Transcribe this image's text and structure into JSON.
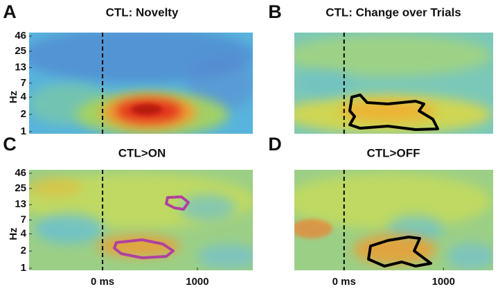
{
  "chart_data": [
    {
      "type": "heatmap",
      "panel_label": "A",
      "title": "CTL: Novelty",
      "ylabel": "Hz",
      "log_y": true,
      "ylim": [
        0.92,
        53
      ],
      "yticks": [
        1,
        2,
        4,
        7,
        13,
        25,
        46
      ],
      "xlim": [
        -775,
        1585
      ],
      "vline": 0
    },
    {
      "type": "heatmap",
      "panel_label": "B",
      "title": "CTL: Change over Trials",
      "log_y": true,
      "ylim": [
        0.92,
        53
      ],
      "xlim": [
        -500,
        1500
      ],
      "vline": 0
    },
    {
      "type": "heatmap",
      "panel_label": "C",
      "title": "CTL>ON",
      "ylabel": "Hz",
      "log_y": true,
      "ylim": [
        0.92,
        53
      ],
      "yticks": [
        1,
        2,
        4,
        7,
        13,
        25,
        46
      ],
      "xlim": [
        -775,
        1585
      ],
      "xticks": [
        {
          "value": 0,
          "label": "0 ms"
        },
        1000
      ],
      "vline": 0
    },
    {
      "type": "heatmap",
      "panel_label": "D",
      "title": "CTL>OFF",
      "log_y": true,
      "ylim": [
        0.92,
        53
      ],
      "xlim": [
        -500,
        1500
      ],
      "xticks": [
        {
          "value": 0,
          "label": "0 ms"
        },
        1000
      ],
      "vline": 0
    }
  ]
}
